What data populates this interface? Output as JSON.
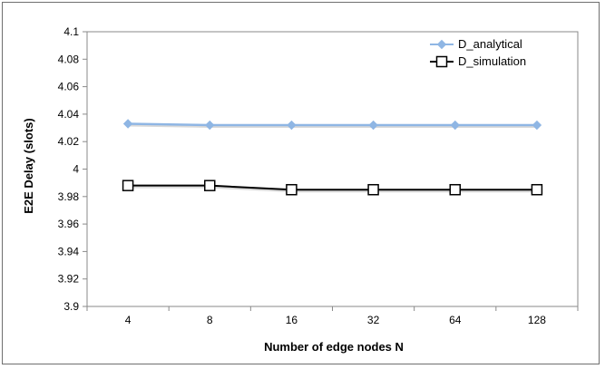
{
  "chart_data": {
    "type": "line",
    "title": "",
    "xlabel": "Number of edge nodes N",
    "ylabel": "E2E Delay (slots)",
    "categories": [
      "4",
      "8",
      "16",
      "32",
      "64",
      "128"
    ],
    "ylim": [
      3.9,
      4.1
    ],
    "yticks": [
      "3.9",
      "3.92",
      "3.94",
      "3.96",
      "3.98",
      "4",
      "4.02",
      "4.04",
      "4.06",
      "4.08",
      "4.1"
    ],
    "grid": false,
    "legend_position": "top-right",
    "series": [
      {
        "name": "D_analytical",
        "values": [
          4.033,
          4.032,
          4.032,
          4.032,
          4.032,
          4.032
        ],
        "color": "#8fb6e4",
        "marker": "diamond"
      },
      {
        "name": "D_simulation",
        "values": [
          3.988,
          3.988,
          3.985,
          3.985,
          3.985,
          3.985
        ],
        "color": "#000000",
        "marker": "open-square"
      }
    ]
  }
}
